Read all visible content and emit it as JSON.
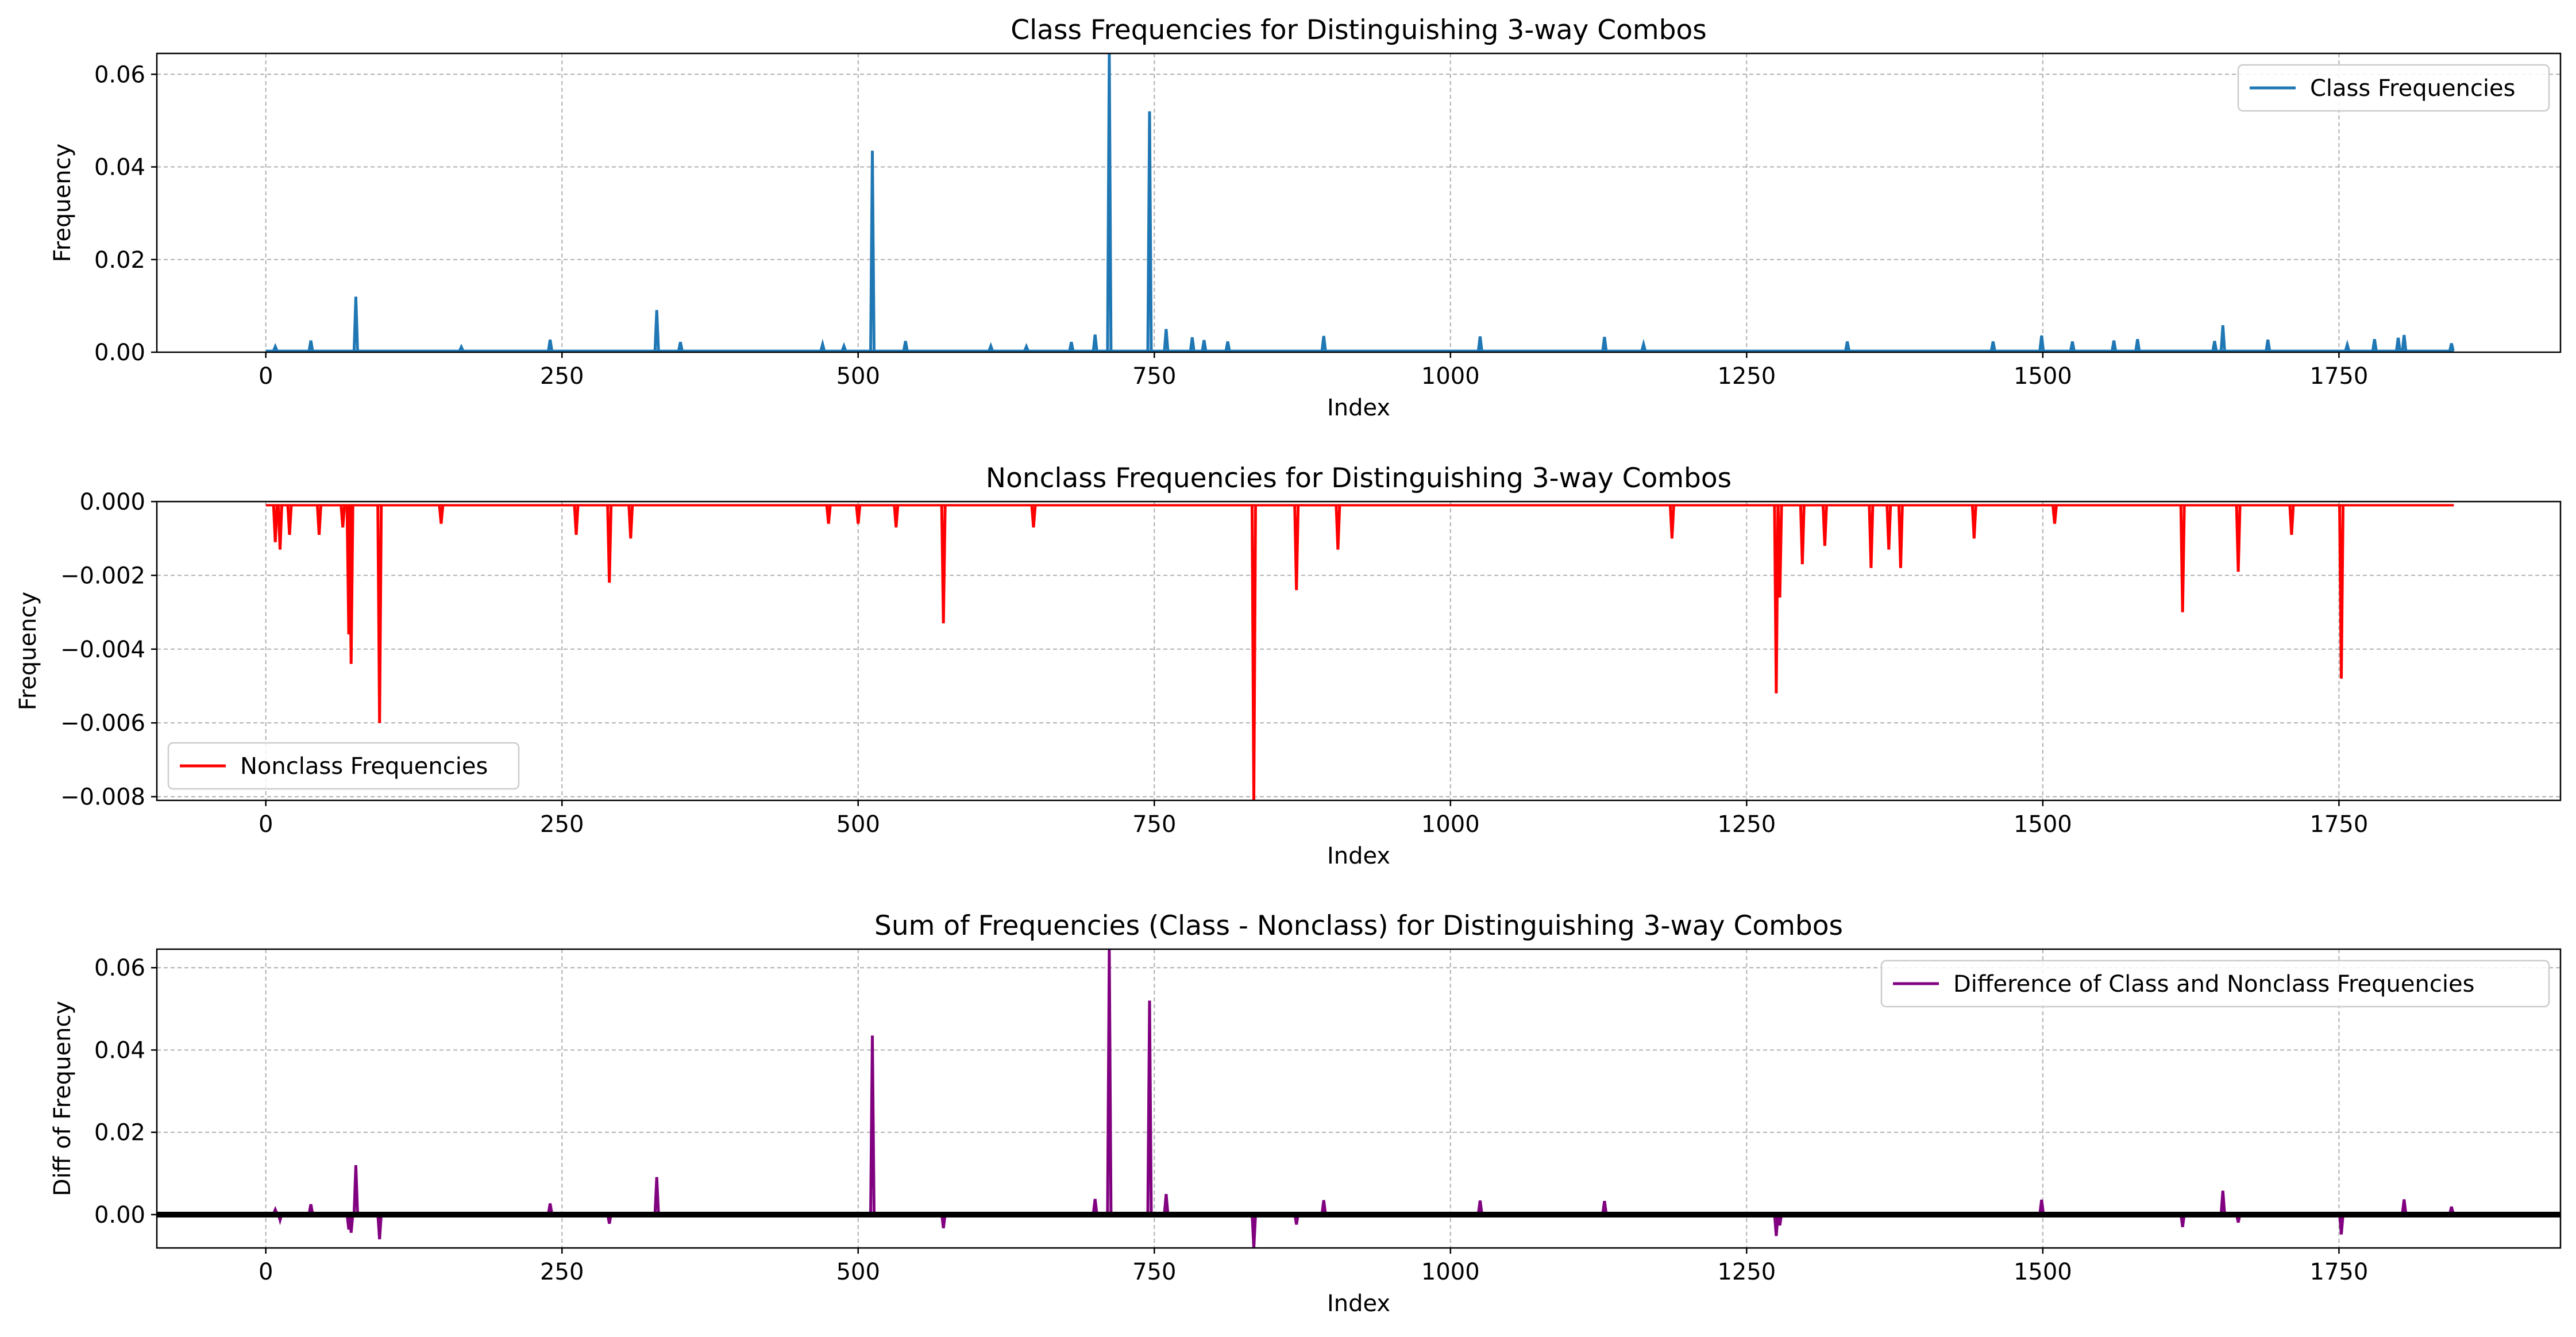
{
  "chart_data": [
    {
      "type": "line",
      "title": "Class Frequencies for Distinguishing 3-way Combos",
      "xlabel": "Index",
      "ylabel": "Frequency",
      "xlim": [
        -92,
        1937
      ],
      "ylim": [
        0.0,
        0.0645
      ],
      "xticks": [
        0,
        250,
        500,
        750,
        1000,
        1250,
        1500,
        1750
      ],
      "xtick_labels": [
        "0",
        "250",
        "500",
        "750",
        "1000",
        "1250",
        "1500",
        "1750"
      ],
      "yticks": [
        0.0,
        0.02,
        0.04,
        0.06
      ],
      "ytick_labels": [
        "0.00",
        "0.02",
        "0.04",
        "0.06"
      ],
      "grid": true,
      "legend_position": "upper right",
      "zero_line": false,
      "series": [
        {
          "name": "Class Frequencies",
          "color": "#1f77b4",
          "baseline": 0.0003,
          "points": [
            [
              8,
              0.0012
            ],
            [
              38,
              0.0025
            ],
            [
              76,
              0.012
            ],
            [
              165,
              0.0011
            ],
            [
              240,
              0.0027
            ],
            [
              330,
              0.0091
            ],
            [
              350,
              0.0022
            ],
            [
              470,
              0.0017
            ],
            [
              488,
              0.0013
            ],
            [
              512,
              0.0435
            ],
            [
              540,
              0.0024
            ],
            [
              612,
              0.0013
            ],
            [
              642,
              0.0012
            ],
            [
              680,
              0.0022
            ],
            [
              700,
              0.0038
            ],
            [
              712,
              0.0645
            ],
            [
              746,
              0.052
            ],
            [
              760,
              0.005
            ],
            [
              782,
              0.0032
            ],
            [
              792,
              0.0026
            ],
            [
              812,
              0.0023
            ],
            [
              893,
              0.0035
            ],
            [
              1025,
              0.0034
            ],
            [
              1130,
              0.0033
            ],
            [
              1163,
              0.0017
            ],
            [
              1335,
              0.0023
            ],
            [
              1458,
              0.0023
            ],
            [
              1499,
              0.0036
            ],
            [
              1525,
              0.0023
            ],
            [
              1560,
              0.0025
            ],
            [
              1580,
              0.0028
            ],
            [
              1645,
              0.0024
            ],
            [
              1652,
              0.0058
            ],
            [
              1690,
              0.0027
            ],
            [
              1757,
              0.0016
            ],
            [
              1780,
              0.0028
            ],
            [
              1800,
              0.0031
            ],
            [
              1805,
              0.0037
            ],
            [
              1845,
              0.0019
            ]
          ]
        }
      ]
    },
    {
      "type": "line",
      "title": "Nonclass Frequencies for Distinguishing 3-way Combos",
      "xlabel": "Index",
      "ylabel": "Frequency",
      "xlim": [
        -92,
        1937
      ],
      "ylim": [
        -0.0081,
        0.0
      ],
      "xticks": [
        0,
        250,
        500,
        750,
        1000,
        1250,
        1500,
        1750
      ],
      "xtick_labels": [
        "0",
        "250",
        "500",
        "750",
        "1000",
        "1250",
        "1500",
        "1750"
      ],
      "yticks": [
        0.0,
        -0.002,
        -0.004,
        -0.006,
        -0.008
      ],
      "ytick_labels": [
        "0.000",
        "−0.002",
        "−0.004",
        "−0.006",
        "−0.008"
      ],
      "grid": true,
      "legend_position": "lower left",
      "zero_line": false,
      "series": [
        {
          "name": "Nonclass Frequencies",
          "color": "#ff0000",
          "baseline": -0.0001,
          "points": [
            [
              8,
              -0.0011
            ],
            [
              12,
              -0.0013
            ],
            [
              20,
              -0.0009
            ],
            [
              45,
              -0.0009
            ],
            [
              65,
              -0.0007
            ],
            [
              70,
              -0.0036
            ],
            [
              72,
              -0.0044
            ],
            [
              96,
              -0.006
            ],
            [
              148,
              -0.0006
            ],
            [
              262,
              -0.0009
            ],
            [
              290,
              -0.0022
            ],
            [
              308,
              -0.001
            ],
            [
              475,
              -0.0006
            ],
            [
              500,
              -0.0006
            ],
            [
              532,
              -0.0007
            ],
            [
              572,
              -0.0033
            ],
            [
              648,
              -0.0007
            ],
            [
              834,
              -0.0081
            ],
            [
              870,
              -0.0024
            ],
            [
              905,
              -0.0013
            ],
            [
              1187,
              -0.001
            ],
            [
              1275,
              -0.0052
            ],
            [
              1278,
              -0.0026
            ],
            [
              1297,
              -0.0017
            ],
            [
              1316,
              -0.0012
            ],
            [
              1355,
              -0.0018
            ],
            [
              1370,
              -0.0013
            ],
            [
              1380,
              -0.0018
            ],
            [
              1442,
              -0.001
            ],
            [
              1510,
              -0.0006
            ],
            [
              1618,
              -0.003
            ],
            [
              1665,
              -0.0019
            ],
            [
              1710,
              -0.0009
            ],
            [
              1752,
              -0.0048
            ]
          ]
        }
      ]
    },
    {
      "type": "line",
      "title": "Sum of Frequencies (Class - Nonclass) for Distinguishing 3-way Combos",
      "xlabel": "Index",
      "ylabel": "Diff of Frequency",
      "xlim": [
        -92,
        1937
      ],
      "ylim": [
        -0.0081,
        0.0645
      ],
      "xticks": [
        0,
        250,
        500,
        750,
        1000,
        1250,
        1500,
        1750
      ],
      "xtick_labels": [
        "0",
        "250",
        "500",
        "750",
        "1000",
        "1250",
        "1500",
        "1750"
      ],
      "yticks": [
        0.0,
        0.02,
        0.04,
        0.06
      ],
      "ytick_labels": [
        "0.00",
        "0.02",
        "0.04",
        "0.06"
      ],
      "grid": true,
      "legend_position": "upper right",
      "zero_line": true,
      "series": [
        {
          "name": "Difference of Class and Nonclass Frequencies",
          "color": "#800080",
          "baseline": 0.0002,
          "points": [
            [
              8,
              0.0012
            ],
            [
              12,
              -0.0013
            ],
            [
              38,
              0.0025
            ],
            [
              70,
              -0.0036
            ],
            [
              72,
              -0.0044
            ],
            [
              76,
              0.012
            ],
            [
              96,
              -0.006
            ],
            [
              240,
              0.0027
            ],
            [
              290,
              -0.0022
            ],
            [
              330,
              0.0091
            ],
            [
              512,
              0.0435
            ],
            [
              572,
              -0.0033
            ],
            [
              700,
              0.0038
            ],
            [
              712,
              0.0645
            ],
            [
              746,
              0.052
            ],
            [
              760,
              0.005
            ],
            [
              834,
              -0.0081
            ],
            [
              870,
              -0.0024
            ],
            [
              893,
              0.0035
            ],
            [
              1025,
              0.0034
            ],
            [
              1130,
              0.0033
            ],
            [
              1275,
              -0.0052
            ],
            [
              1278,
              -0.0026
            ],
            [
              1499,
              0.0036
            ],
            [
              1618,
              -0.003
            ],
            [
              1652,
              0.0058
            ],
            [
              1665,
              -0.0019
            ],
            [
              1752,
              -0.0048
            ],
            [
              1805,
              0.0037
            ],
            [
              1845,
              0.0019
            ]
          ]
        }
      ]
    }
  ]
}
